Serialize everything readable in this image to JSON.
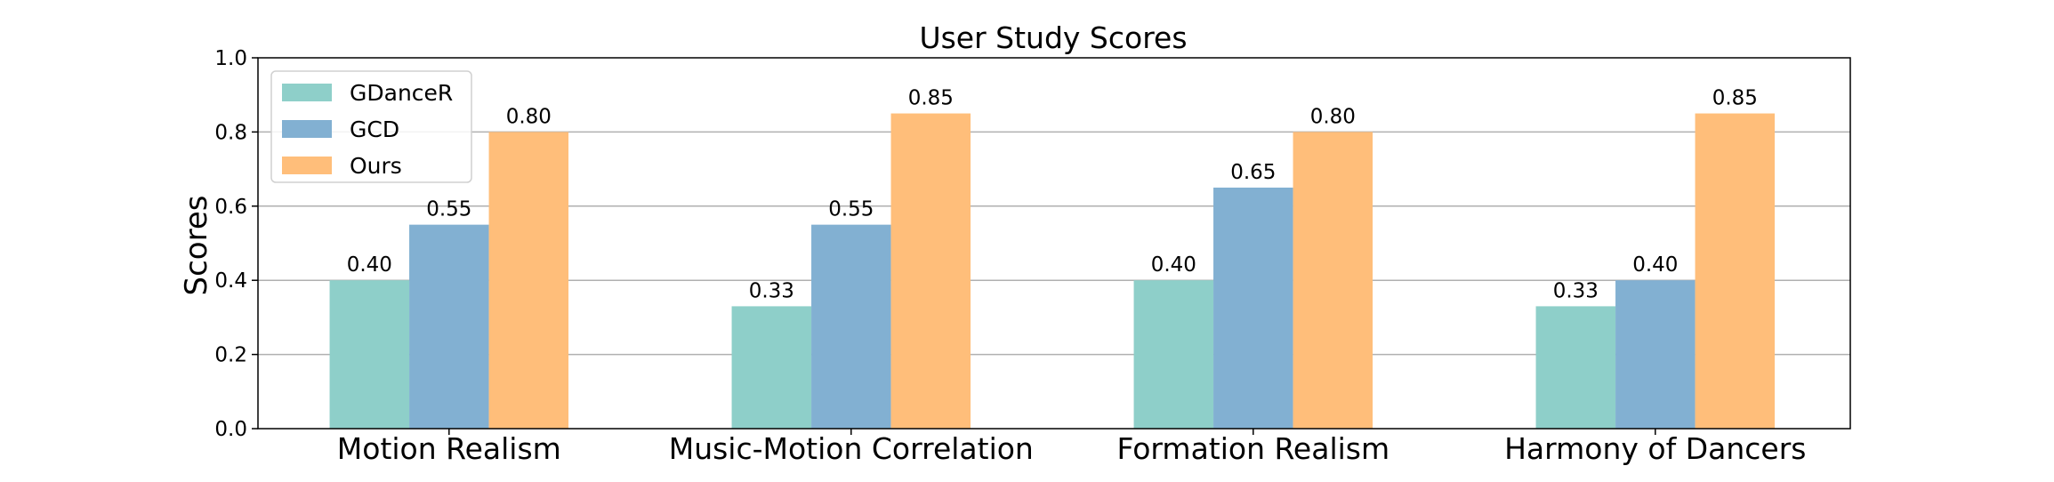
{
  "chart_data": {
    "type": "bar",
    "title": "User Study Scores",
    "xlabel": "",
    "ylabel": "Scores",
    "ylim": [
      0,
      1.0
    ],
    "yticks": [
      "0.0",
      "0.2",
      "0.4",
      "0.6",
      "0.8",
      "1.0"
    ],
    "categories": [
      "Motion Realism",
      "Music-Motion Correlation",
      "Formation Realism",
      "Harmony of Dancers"
    ],
    "series": [
      {
        "name": "GDanceR",
        "color": "#8ecfc9",
        "values": [
          0.4,
          0.33,
          0.4,
          0.33
        ],
        "labels": [
          "0.40",
          "0.33",
          "0.40",
          "0.33"
        ]
      },
      {
        "name": "GCD",
        "color": "#82b0d2",
        "values": [
          0.55,
          0.55,
          0.65,
          0.4
        ],
        "labels": [
          "0.55",
          "0.55",
          "0.65",
          "0.40"
        ]
      },
      {
        "name": "Ours",
        "color": "#ffbe7a",
        "values": [
          0.8,
          0.85,
          0.8,
          0.85
        ],
        "labels": [
          "0.80",
          "0.85",
          "0.80",
          "0.85"
        ]
      }
    ],
    "grid": "horizontal",
    "legend_position": "top-left"
  }
}
